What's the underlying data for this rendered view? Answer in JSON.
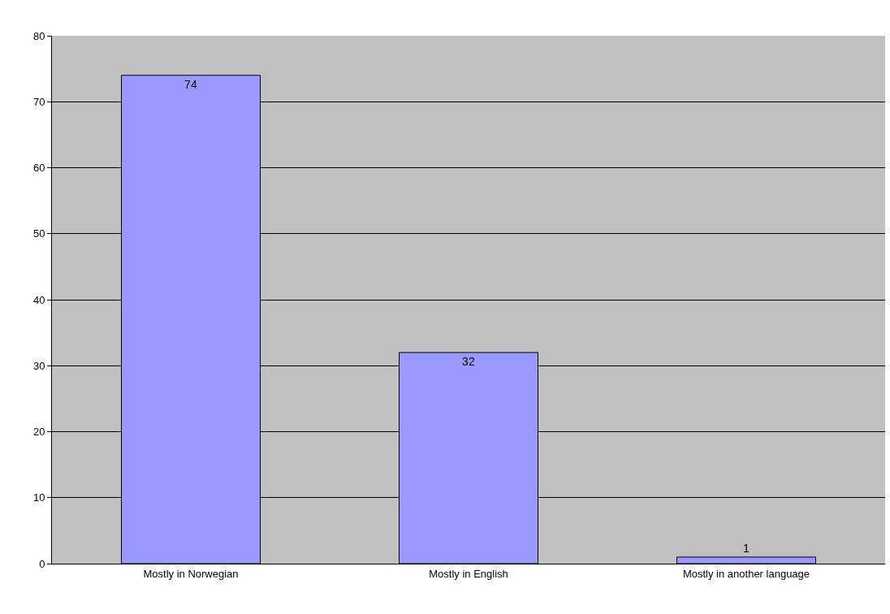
{
  "chart_data": {
    "type": "bar",
    "categories": [
      "Mostly in Norwegian",
      "Mostly in English",
      "Mostly in another language"
    ],
    "values": [
      74,
      32,
      1
    ],
    "color": "#9999ff",
    "ylim": [
      0,
      80
    ],
    "yticks": [
      0,
      10,
      20,
      30,
      40,
      50,
      60,
      70,
      80
    ],
    "grid": "y",
    "data_labels": true
  }
}
